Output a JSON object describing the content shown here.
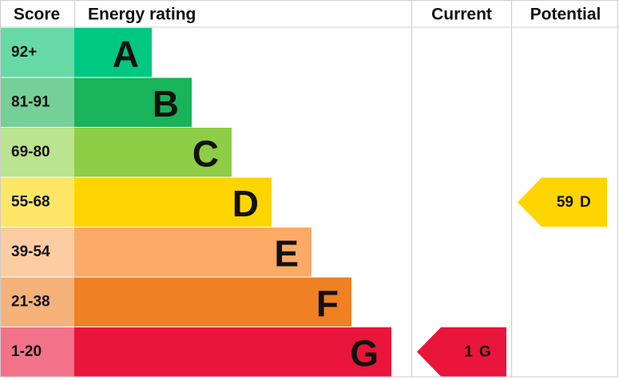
{
  "chart_data": {
    "type": "energy-rating",
    "headers": [
      "Score",
      "Energy rating",
      "Current",
      "Potential"
    ],
    "bands": [
      {
        "score": "92+",
        "letter": "A",
        "color": "#00c781",
        "tint": "#66d9a7"
      },
      {
        "score": "81-91",
        "letter": "B",
        "color": "#19b459",
        "tint": "#75d097"
      },
      {
        "score": "69-80",
        "letter": "C",
        "color": "#8dce46",
        "tint": "#bae490"
      },
      {
        "score": "55-68",
        "letter": "D",
        "color": "#ffd500",
        "tint": "#ffe666"
      },
      {
        "score": "39-54",
        "letter": "E",
        "color": "#fcaa65",
        "tint": "#fdcca3"
      },
      {
        "score": "21-38",
        "letter": "F",
        "color": "#ef8023",
        "tint": "#f5b37b"
      },
      {
        "score": "1-20",
        "letter": "G",
        "color": "#e9153b",
        "tint": "#f27389"
      }
    ],
    "current": {
      "score": 1,
      "rating": "G"
    },
    "potential": {
      "score": 59,
      "rating": "D"
    }
  }
}
